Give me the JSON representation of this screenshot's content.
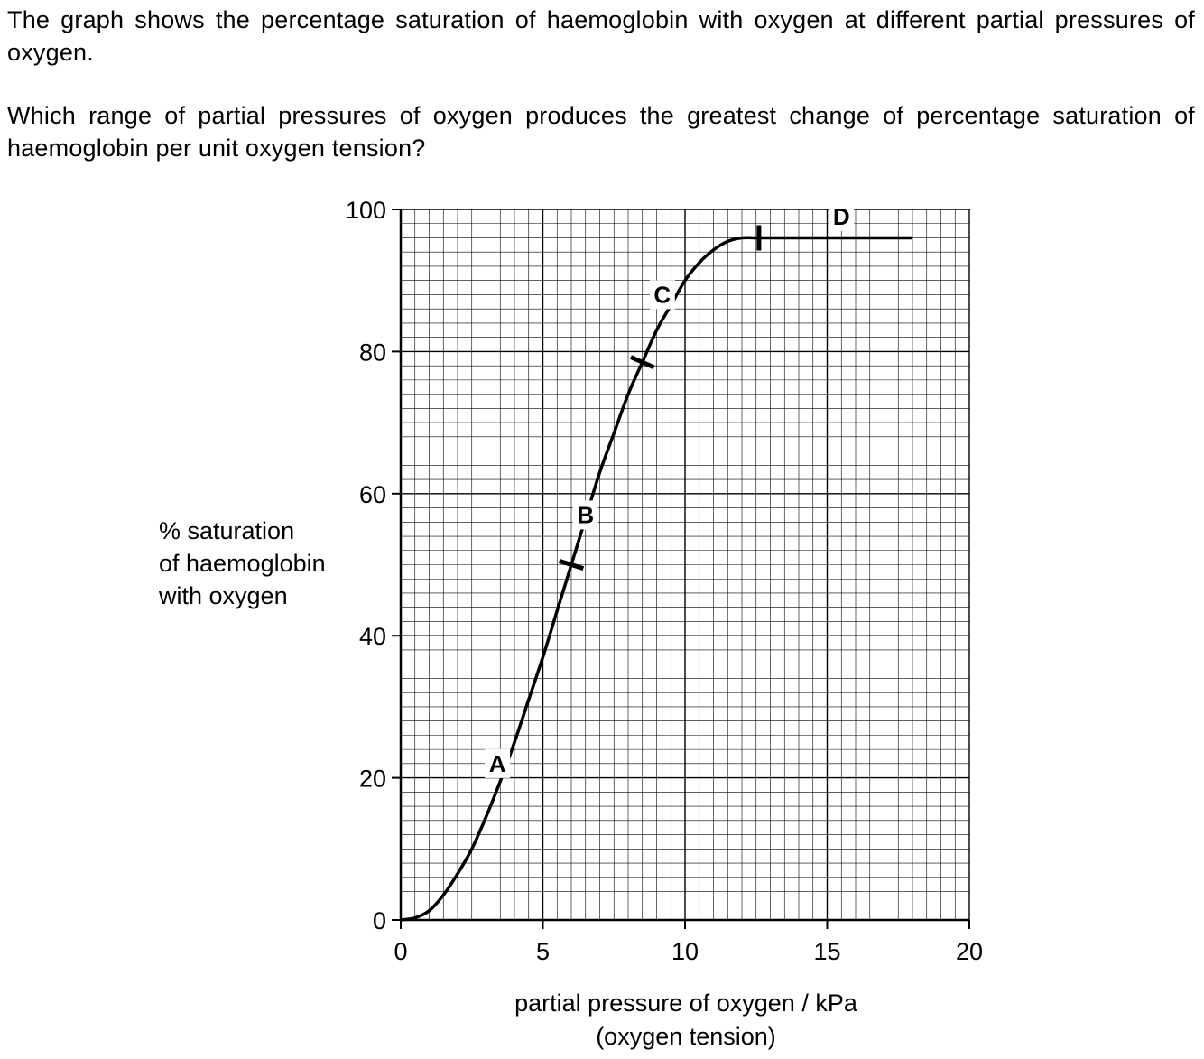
{
  "question": {
    "intro": "The graph shows the percentage saturation of haemoglobin with oxygen at different partial pressures of oxygen.",
    "prompt": "Which range of partial pressures of oxygen produces the greatest change of percentage saturation of haemoglobin per unit oxygen tension?"
  },
  "chart_data": {
    "type": "line",
    "xlabel_lines": [
      "partial pressure of oxygen / kPa",
      "(oxygen tension)"
    ],
    "ylabel_lines": [
      "% saturation",
      "of haemoglobin",
      "with oxygen"
    ],
    "xlim": [
      0,
      20
    ],
    "ylim": [
      0,
      100
    ],
    "x_ticks": [
      0,
      5,
      10,
      15,
      20
    ],
    "y_ticks": [
      0,
      20,
      40,
      60,
      80,
      100
    ],
    "x_tick_labels": [
      "0",
      "5",
      "10",
      "15",
      "20"
    ],
    "y_tick_labels": [
      "0",
      "20",
      "40",
      "60",
      "80",
      "100"
    ],
    "grid": "fine graph paper, minor every 0.5 kPa and 2%, major every 5 kPa and 20%",
    "series": [
      {
        "x": [
          0,
          0.5,
          1.0,
          1.5,
          2.0,
          2.5,
          3.0,
          3.5,
          4.0,
          4.5,
          5.0,
          5.5,
          6.0,
          6.5,
          7.0,
          7.5,
          8.0,
          8.5,
          9.0,
          9.5,
          10.0,
          10.5,
          11.0,
          11.5,
          12.0,
          12.5,
          13.0,
          14.0,
          15.0,
          16.0,
          17.0,
          18.0
        ],
        "y": [
          0,
          0.3,
          1.3,
          3.5,
          6.5,
          10.0,
          14.5,
          19.5,
          25.0,
          31.0,
          37.0,
          43.5,
          50.0,
          56.5,
          63.0,
          68.5,
          74.0,
          78.5,
          83.0,
          86.5,
          90.0,
          92.5,
          94.3,
          95.5,
          96.0,
          96.0,
          96.0,
          96.0,
          96.0,
          96.0,
          96.0,
          96.0
        ]
      }
    ],
    "range_markers_x": [
      6.0,
      8.5,
      12.6
    ],
    "range_labels": [
      {
        "text": "A",
        "x": 3.4,
        "y": 22
      },
      {
        "text": "B",
        "x": 6.5,
        "y": 57
      },
      {
        "text": "C",
        "x": 9.2,
        "y": 88
      },
      {
        "text": "D",
        "x": 15.5,
        "y": 99
      }
    ],
    "color": "#000000"
  }
}
